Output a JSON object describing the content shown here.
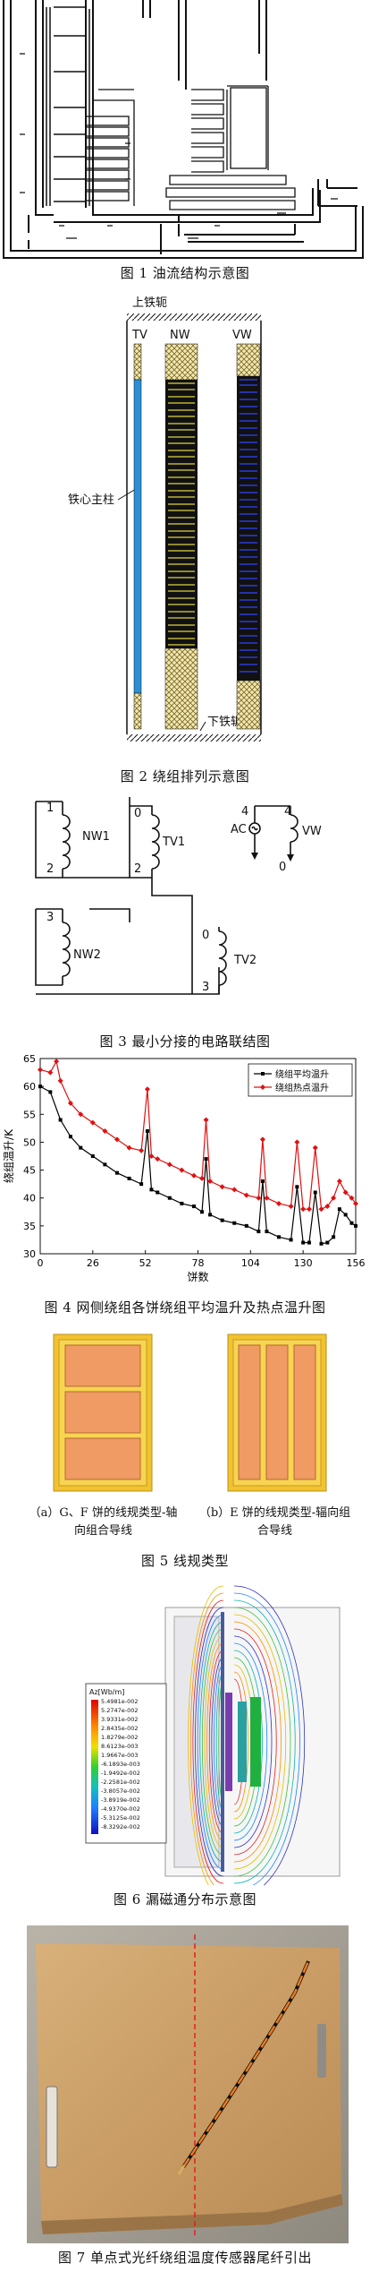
{
  "figures": {
    "fig1": {
      "caption": "图 1   油流结构示意图"
    },
    "fig2": {
      "caption": "图 2   绕组排列示意图",
      "labels": {
        "top_yoke": "上铁轭",
        "bottom_yoke": "下铁轭",
        "core": "铁心主柱",
        "tv": "TV",
        "nw": "NW",
        "vw": "VW"
      }
    },
    "fig3": {
      "caption": "图 3   最小分接的电路联结图",
      "labels": {
        "nw1": "NW1",
        "tv1": "TV1",
        "nw2": "NW2",
        "tv2": "TV2",
        "vw": "VW",
        "ac": "AC",
        "n1": "1",
        "n2a": "2",
        "n2b": "2",
        "n0a": "0",
        "n0b": "0",
        "n3a": "3",
        "n3b": "3",
        "n4a": "4",
        "n4b": "4",
        "n0c": "0"
      }
    },
    "fig4": {
      "caption": "图 4   网侧绕组各饼绕组平均温升及热点温升图",
      "chart_data": {
        "type": "line",
        "xlabel": "饼数",
        "ylabel": "绕组温升/K",
        "xlim": [
          0,
          156
        ],
        "ylim": [
          30,
          65
        ],
        "xticks": [
          0,
          26,
          52,
          78,
          104,
          130,
          156
        ],
        "yticks": [
          30,
          35,
          40,
          45,
          50,
          55,
          60,
          65
        ],
        "legend_position": "top-right",
        "series": [
          {
            "name": "绕组平均温升",
            "color": "#000000",
            "marker": "square",
            "x": [
              0,
              5,
              10,
              15,
              20,
              26,
              32,
              38,
              44,
              50,
              53,
              55,
              58,
              64,
              70,
              76,
              80,
              82,
              84,
              90,
              96,
              102,
              108,
              110,
              112,
              118,
              124,
              127,
              130,
              133,
              136,
              139,
              142,
              145,
              148,
              151,
              154,
              156
            ],
            "y": [
              60,
              59,
              54,
              51,
              49,
              47.5,
              46,
              44.5,
              43.5,
              42.5,
              52,
              41.5,
              41,
              40,
              39,
              38.5,
              37.5,
              47,
              37,
              36,
              35.5,
              35,
              34,
              43,
              34,
              33,
              32.5,
              42,
              32,
              32,
              41,
              31.8,
              32,
              33,
              38,
              37,
              35.5,
              35
            ]
          },
          {
            "name": "绕组热点温升",
            "color": "#e01010",
            "marker": "diamond",
            "x": [
              0,
              5,
              8,
              10,
              15,
              20,
              26,
              32,
              38,
              44,
              50,
              53,
              55,
              58,
              64,
              70,
              76,
              80,
              82,
              84,
              90,
              96,
              102,
              108,
              110,
              112,
              118,
              124,
              127,
              130,
              133,
              136,
              139,
              142,
              145,
              148,
              151,
              154,
              156
            ],
            "y": [
              63,
              62.5,
              64.5,
              61,
              57,
              55,
              53.5,
              52,
              50.5,
              49,
              48.5,
              59.5,
              47.5,
              47,
              46,
              45,
              44,
              43.5,
              54,
              43,
              42,
              41.5,
              40.5,
              40,
              50.5,
              40,
              39,
              38.5,
              50,
              38,
              38,
              49,
              38,
              38.5,
              40,
              43,
              41,
              40,
              39
            ]
          }
        ]
      }
    },
    "fig5": {
      "caption": "图 5   线规类型",
      "sub_a": "（a）G、F 饼的线规类型-轴向组合导线",
      "sub_b": "（b）E 饼的线规类型-辐向组合导线"
    },
    "fig6": {
      "caption": "图 6   漏磁通分布示意图",
      "legend_title": "Az[Wb/m]",
      "legend_values": [
        "5.4981e-002",
        "5.2747e-002",
        "3.9331e-002",
        "2.8435e-002",
        "1.8279e-002",
        "8.6123e-003",
        "1.9667e-003",
        "-6.1893e-003",
        "-1.9492e-002",
        "-2.2581e-002",
        "-3.8057e-002",
        "-3.8919e-002",
        "-4.9370e-002",
        "-5.3125e-002",
        "-8.3292e-002"
      ]
    },
    "fig7": {
      "caption": "图 7   单点式光纤绕组温度传感器尾纤引出"
    }
  }
}
